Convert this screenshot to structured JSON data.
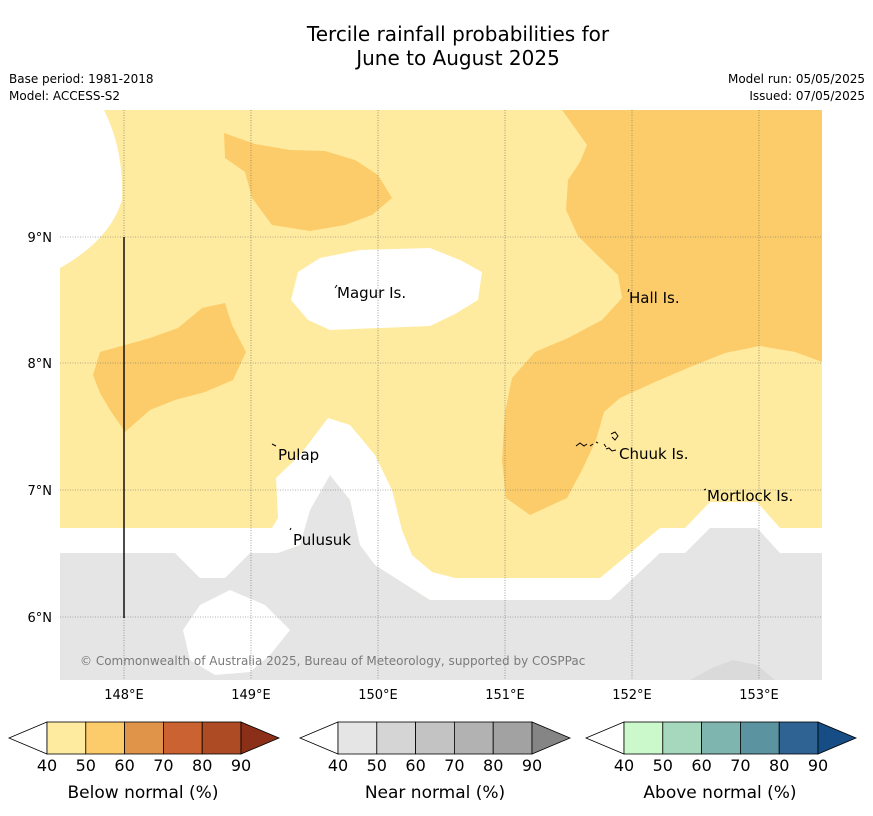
{
  "title": {
    "line1": "Tercile rainfall probabilities for",
    "line2": "June to August 2025"
  },
  "meta": {
    "base_period": "Base period: 1981-2018",
    "model": "Model: ACCESS-S2",
    "model_run": "Model run: 05/05/2025",
    "issued": "Issued: 07/05/2025"
  },
  "map": {
    "longitude_labels": [
      "148°E",
      "149°E",
      "150°E",
      "151°E",
      "152°E",
      "153°E"
    ],
    "latitude_labels": [
      "9°N",
      "8°N",
      "7°N",
      "6°N"
    ],
    "places": [
      {
        "name": "Magur Is."
      },
      {
        "name": "Hall Is."
      },
      {
        "name": "Pulap"
      },
      {
        "name": "Chuuk Is."
      },
      {
        "name": "Mortlock Is."
      },
      {
        "name": "Pulusuk"
      }
    ],
    "copyright": "© Commonwealth of Australia 2025, Bureau of Meteorology, supported by COSPPac",
    "colors": {
      "below_40_50": "#feeb9f",
      "below_50_60": "#fdcc6a",
      "near_40_50": "#e5e5e5",
      "white": "#ffffff"
    }
  },
  "legends": [
    {
      "label": "Below normal (%)",
      "ticks": [
        "40",
        "50",
        "60",
        "70",
        "80",
        "90"
      ],
      "colors": [
        "#feeb9f",
        "#fdcc6a",
        "#e0944a",
        "#cb6232",
        "#ad4b25",
        "#8c2f19"
      ]
    },
    {
      "label": "Near normal (%)",
      "ticks": [
        "40",
        "50",
        "60",
        "70",
        "80",
        "90"
      ],
      "colors": [
        "#e5e5e5",
        "#d5d5d5",
        "#c3c3c3",
        "#b2b2b2",
        "#a2a2a2",
        "#858585"
      ]
    },
    {
      "label": "Above normal (%)",
      "ticks": [
        "40",
        "50",
        "60",
        "70",
        "80",
        "90"
      ],
      "colors": [
        "#ccf9cc",
        "#a5d8bc",
        "#7eb5ae",
        "#5c93a1",
        "#2f6394",
        "#154d84"
      ]
    }
  ]
}
